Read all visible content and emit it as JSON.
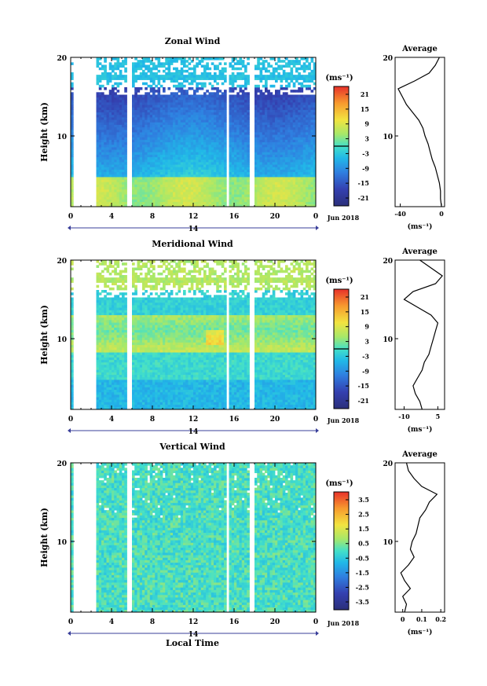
{
  "figure": {
    "shared_x_label": "Local Time",
    "date_label": "Jun 2018",
    "day_label": "14"
  },
  "chart_data": [
    {
      "type": "heatmap",
      "title": "Zonal Wind",
      "ylabel": "Height (km)",
      "x_ticks": [
        "0",
        "4",
        "8",
        "12",
        "16",
        "20",
        "0"
      ],
      "y_ticks": [
        "20",
        "10"
      ],
      "xlim": [
        0,
        24
      ],
      "ylim": [
        1,
        20
      ],
      "colorbar": {
        "unit": "(ms⁻¹)",
        "ticks": [
          "21",
          "15",
          "9",
          "3",
          "-3",
          "-9",
          "-15",
          "-21"
        ],
        "range": [
          -24,
          24
        ],
        "zero_line": true
      },
      "data_gaps_hours": [
        [
          0.3,
          2.6
        ],
        [
          5.4,
          5.9
        ],
        [
          15.2,
          15.6
        ],
        [
          17.5,
          18.1
        ]
      ],
      "profile": {
        "title": "Average",
        "xlabel": "(ms⁻¹)",
        "x_ticks": [
          "-40",
          "0"
        ],
        "y_ticks": [
          "20",
          "10"
        ],
        "xlim": [
          -45,
          3
        ],
        "heights": [
          1,
          2,
          3,
          4,
          5,
          6,
          7,
          8,
          9,
          10,
          11,
          12,
          13,
          14,
          15,
          16,
          17,
          18,
          19,
          20
        ],
        "values": [
          0,
          -1,
          -1,
          -2,
          -4,
          -6,
          -9,
          -11,
          -13,
          -16,
          -18,
          -22,
          -28,
          -34,
          -38,
          -42,
          -26,
          -12,
          -6,
          -2
        ]
      }
    },
    {
      "type": "heatmap",
      "title": "Meridional Wind",
      "ylabel": "Height (km)",
      "x_ticks": [
        "0",
        "4",
        "8",
        "12",
        "16",
        "20",
        "0"
      ],
      "y_ticks": [
        "20",
        "10"
      ],
      "xlim": [
        0,
        24
      ],
      "ylim": [
        1,
        20
      ],
      "colorbar": {
        "unit": "(ms⁻¹)",
        "ticks": [
          "21",
          "15",
          "9",
          "3",
          "-3",
          "-9",
          "-15",
          "-21"
        ],
        "range": [
          -24,
          24
        ],
        "zero_line": true
      },
      "data_gaps_hours": [
        [
          0.3,
          2.6
        ],
        [
          5.4,
          5.9
        ],
        [
          15.2,
          15.6
        ],
        [
          17.5,
          18.1
        ]
      ],
      "profile": {
        "title": "Average",
        "xlabel": "(ms⁻¹)",
        "x_ticks": [
          "-10",
          "5"
        ],
        "y_ticks": [
          "20",
          "10"
        ],
        "xlim": [
          -14,
          8
        ],
        "heights": [
          1,
          2,
          3,
          4,
          5,
          6,
          7,
          8,
          9,
          10,
          11,
          12,
          13,
          14,
          15,
          16,
          17,
          18,
          19,
          20
        ],
        "values": [
          -2,
          -3,
          -5,
          -6,
          -4,
          -2,
          -1,
          1,
          2,
          3,
          4,
          5,
          2,
          -4,
          -10,
          -6,
          4,
          7,
          2,
          -3
        ]
      }
    },
    {
      "type": "heatmap",
      "title": "Vertical Wind",
      "ylabel": "Height (km)",
      "x_ticks": [
        "0",
        "4",
        "8",
        "12",
        "16",
        "20",
        "0"
      ],
      "y_ticks": [
        "20",
        "10"
      ],
      "xlim": [
        0,
        24
      ],
      "ylim": [
        1,
        20
      ],
      "colorbar": {
        "unit": "(ms⁻¹)",
        "ticks": [
          "3.5",
          "2.5",
          "1.5",
          "0.5",
          "-0.5",
          "-1.5",
          "-2.5",
          "-3.5"
        ],
        "range": [
          -4,
          4
        ],
        "zero_line": false
      },
      "data_gaps_hours": [
        [
          0.3,
          2.6
        ],
        [
          5.4,
          5.9
        ],
        [
          15.2,
          15.6
        ],
        [
          17.5,
          18.1
        ]
      ],
      "profile": {
        "title": "Average",
        "xlabel": "(ms⁻¹)",
        "x_ticks": [
          "0",
          "0.1",
          "0.2"
        ],
        "y_ticks": [
          "20",
          "10"
        ],
        "xlim": [
          -0.04,
          0.22
        ],
        "heights": [
          1,
          2,
          3,
          4,
          5,
          6,
          7,
          8,
          9,
          10,
          11,
          12,
          13,
          14,
          15,
          16,
          17,
          18,
          19,
          20
        ],
        "values": [
          0.01,
          0.02,
          0.0,
          0.04,
          0.01,
          -0.01,
          0.03,
          0.06,
          0.04,
          0.05,
          0.07,
          0.08,
          0.09,
          0.12,
          0.14,
          0.18,
          0.1,
          0.06,
          0.03,
          0.02
        ]
      }
    }
  ]
}
